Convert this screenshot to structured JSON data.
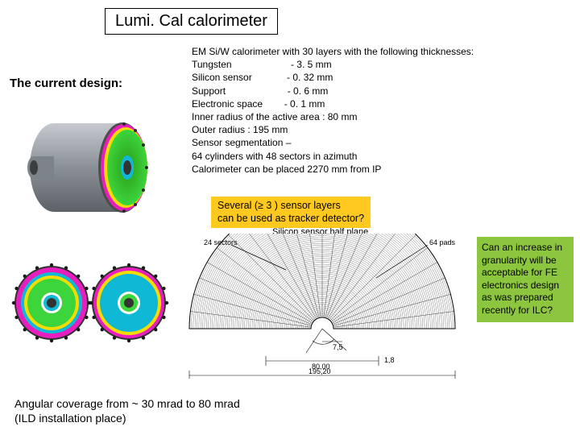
{
  "title": "Lumi. Cal   calorimeter",
  "current_design_label": "The current  design:",
  "specs": {
    "header": "EM Si/W calorimeter with 30 layers with the following thicknesses:",
    "rows": [
      {
        "name": "Tungsten",
        "val": "- 3. 5 mm"
      },
      {
        "name": "Silicon sensor",
        "val": "- 0. 32 mm"
      },
      {
        "name": "Support",
        "val": "- 0. 6 mm"
      },
      {
        "name": "Electronic space",
        "val": "- 0. 1 mm"
      }
    ],
    "inner_radius": "Inner radius of the active area  : 80 mm",
    "outer_radius": "Outer radius                              : 195 mm",
    "segmentation_label": "Sensor segmentation –",
    "segmentation_detail": "64 cylinders  with 48 sectors in azimuth",
    "placement": "Calorimeter can be placed  2270 mm from IP"
  },
  "yellow_box": {
    "line1": "Several (≥ 3 ) sensor layers",
    "line2": "can be used  as tracker detector?"
  },
  "green_box": "Can an increase in granularity will  be acceptable for FE electronics design as was prepared recently for ILC?",
  "footer": {
    "line1": "Angular coverage from ~  30  mrad  to 80 mrad",
    "line2": "(ILD installation place)"
  },
  "halfplane": {
    "title": "Silicon sensor half plane",
    "sectors_label": "24 sectors",
    "pads_label": "64 pads",
    "dim_inner": "7,5",
    "dim_mid": "80,00",
    "dim_edge": "1,8",
    "dim_outer": "195,20",
    "sectors": 24,
    "rings": 64
  },
  "colors": {
    "yellow": "#ffc91f",
    "green_box": "#8cc63e",
    "tube_gray": "#9aa0a6",
    "tube_gray_dark": "#6b7075",
    "ring_magenta": "#e81fbe",
    "ring_green": "#3cd63c",
    "ring_cyan": "#0fb9d6",
    "ring_yellow": "#f5dc00",
    "ring_inner": "#5a5f65",
    "background": "#ffffff"
  }
}
